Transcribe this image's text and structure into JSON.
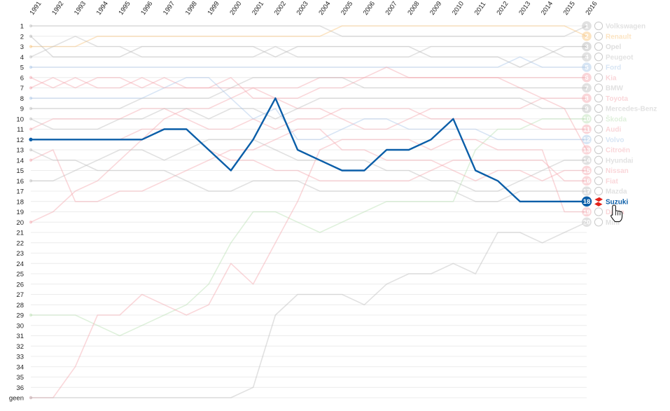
{
  "chart_data": {
    "type": "line",
    "x": [
      "1991",
      "1992",
      "1993",
      "1994",
      "1995",
      "1996",
      "1997",
      "1998",
      "1999",
      "2000",
      "2001",
      "2002",
      "2003",
      "2004",
      "2005",
      "2006",
      "2007",
      "2008",
      "2009",
      "2010",
      "2011",
      "2012",
      "2013",
      "2014",
      "2015",
      "2016"
    ],
    "y_ticks": [
      "1",
      "2",
      "3",
      "4",
      "5",
      "6",
      "7",
      "8",
      "9",
      "10",
      "11",
      "12",
      "13",
      "14",
      "15",
      "16",
      "17",
      "18",
      "19",
      "20",
      "21",
      "22",
      "23",
      "24",
      "25",
      "26",
      "27",
      "28",
      "29",
      "30",
      "31",
      "32",
      "33",
      "34",
      "35",
      "36",
      "geen"
    ],
    "y_reversed": true,
    "grid": true,
    "highlighted_series": "Suzuki",
    "series": [
      {
        "rank": "1",
        "name": "Volkswagen",
        "color": "#bdbdbd",
        "values": [
          1,
          1,
          1,
          1,
          1,
          1,
          1,
          1,
          1,
          1,
          1,
          1,
          1,
          1,
          2,
          2,
          2,
          2,
          2,
          2,
          2,
          2,
          2,
          2,
          2,
          1
        ]
      },
      {
        "rank": "2",
        "name": "Renault",
        "color": "#f9c47a",
        "values": [
          3,
          3,
          3,
          2,
          2,
          2,
          2,
          2,
          2,
          2,
          2,
          2,
          2,
          2,
          1,
          1,
          1,
          1,
          1,
          1,
          1,
          1,
          1,
          1,
          1,
          2
        ]
      },
      {
        "rank": "3",
        "name": "Opel",
        "color": "#b5b5b5",
        "values": [
          2,
          4,
          4,
          4,
          4,
          3,
          3,
          3,
          3,
          3,
          3,
          4,
          3,
          3,
          3,
          3,
          3,
          3,
          4,
          4,
          4,
          4,
          5,
          4,
          3,
          3
        ]
      },
      {
        "rank": "4",
        "name": "Peugeot",
        "color": "#bfbfbf",
        "values": [
          4,
          3,
          2,
          3,
          3,
          4,
          4,
          4,
          4,
          4,
          4,
          3,
          4,
          4,
          4,
          4,
          4,
          4,
          3,
          3,
          3,
          3,
          3,
          3,
          4,
          4
        ]
      },
      {
        "rank": "5",
        "name": "Ford",
        "color": "#a8c6e8",
        "values": [
          5,
          5,
          5,
          5,
          5,
          5,
          5,
          5,
          5,
          5,
          5,
          5,
          5,
          5,
          5,
          5,
          5,
          5,
          5,
          5,
          5,
          5,
          4,
          5,
          5,
          5
        ]
      },
      {
        "rank": "6",
        "name": "Kia",
        "color": "#f4a6ad",
        "values": [
          20,
          19,
          17,
          16,
          14,
          12,
          10,
          9,
          9,
          8,
          7,
          7,
          7,
          6,
          6,
          6,
          6,
          6,
          6,
          6,
          6,
          6,
          6,
          6,
          6,
          6
        ]
      },
      {
        "rank": "7",
        "name": "BMW",
        "color": "#bdbdbd",
        "values": [
          9,
          9,
          9,
          9,
          9,
          8,
          8,
          8,
          8,
          7,
          6,
          6,
          6,
          6,
          6,
          7,
          7,
          7,
          7,
          7,
          7,
          7,
          7,
          7,
          7,
          7
        ]
      },
      {
        "rank": "8",
        "name": "Toyota",
        "color": "#f4a6ad",
        "values": [
          7,
          6,
          7,
          6,
          6,
          7,
          6,
          7,
          7,
          6,
          8,
          8,
          9,
          9,
          10,
          11,
          11,
          10,
          9,
          9,
          9,
          9,
          9,
          8,
          8,
          8
        ]
      },
      {
        "rank": "9",
        "name": "Mercedes-Benz",
        "color": "#bdbdbd",
        "values": [
          10,
          11,
          11,
          11,
          10,
          10,
          9,
          9,
          10,
          9,
          9,
          10,
          9,
          8,
          8,
          8,
          8,
          8,
          8,
          8,
          8,
          8,
          8,
          9,
          9,
          9
        ]
      },
      {
        "rank": "10",
        "name": "Škoda",
        "color": "#b9dfb2",
        "values": [
          29,
          29,
          29,
          30,
          31,
          30,
          29,
          28,
          26,
          22,
          19,
          19,
          20,
          21,
          20,
          19,
          18,
          18,
          18,
          18,
          13,
          11,
          11,
          10,
          10,
          10
        ]
      },
      {
        "rank": "11",
        "name": "Audi",
        "color": "#f4a6ad",
        "values": [
          11,
          10,
          10,
          10,
          10,
          9,
          9,
          10,
          11,
          11,
          10,
          11,
          10,
          10,
          9,
          9,
          9,
          9,
          10,
          10,
          10,
          10,
          10,
          11,
          11,
          11
        ]
      },
      {
        "rank": "12",
        "name": "Volvo",
        "color": "#a8c6e8",
        "values": [
          8,
          8,
          8,
          8,
          8,
          8,
          7,
          6,
          6,
          8,
          10,
          9,
          12,
          12,
          11,
          10,
          10,
          11,
          11,
          11,
          11,
          12,
          12,
          12,
          12,
          12
        ]
      },
      {
        "rank": "13",
        "name": "Citroën",
        "color": "#f4a6ad",
        "values": [
          6,
          7,
          6,
          7,
          7,
          6,
          7,
          7,
          7,
          7,
          7,
          8,
          8,
          7,
          7,
          6,
          5,
          6,
          6,
          6,
          6,
          6,
          7,
          8,
          9,
          13
        ]
      },
      {
        "rank": "14",
        "name": "Hyundai",
        "color": "#bdbdbd",
        "values": [
          16,
          16,
          15,
          14,
          13,
          13,
          14,
          13,
          12,
          12,
          12,
          13,
          14,
          14,
          14,
          14,
          15,
          15,
          16,
          16,
          17,
          17,
          16,
          15,
          14,
          14
        ]
      },
      {
        "rank": "15",
        "name": "Nissan",
        "color": "#f4a6ad",
        "values": [
          14,
          13,
          18,
          18,
          17,
          17,
          16,
          15,
          14,
          13,
          13,
          12,
          11,
          11,
          13,
          13,
          14,
          14,
          14,
          15,
          16,
          15,
          15,
          16,
          15,
          15
        ]
      },
      {
        "rank": "16",
        "name": "Fiat",
        "color": "#f4a6ad",
        "values": [
          12,
          12,
          12,
          12,
          12,
          11,
          11,
          11,
          13,
          14,
          14,
          15,
          15,
          16,
          16,
          16,
          16,
          16,
          15,
          14,
          14,
          14,
          14,
          14,
          16,
          16
        ]
      },
      {
        "rank": "17",
        "name": "Mazda",
        "color": "#bdbdbd",
        "values": [
          13,
          14,
          14,
          15,
          15,
          15,
          15,
          16,
          17,
          17,
          16,
          16,
          16,
          17,
          17,
          17,
          17,
          17,
          17,
          17,
          18,
          18,
          17,
          17,
          17,
          17
        ]
      },
      {
        "rank": "18",
        "name": "Suzuki",
        "color": "#0b5ea8",
        "values": [
          12,
          12,
          12,
          12,
          12,
          12,
          11,
          11,
          13,
          15,
          12,
          8,
          13,
          14,
          15,
          15,
          13,
          13,
          12,
          10,
          15,
          16,
          18,
          18,
          18,
          18
        ]
      },
      {
        "rank": "19",
        "name": "Dacia",
        "color": "#f4a6ad",
        "values": [
          "geen",
          "geen",
          34,
          29,
          29,
          27,
          28,
          29,
          28,
          24,
          26,
          22,
          18,
          13,
          12,
          12,
          12,
          12,
          13,
          12,
          12,
          13,
          13,
          13,
          19,
          19
        ]
      },
      {
        "rank": "20",
        "name": "Mini",
        "color": "#bdbdbd",
        "values": [
          "geen",
          "geen",
          "geen",
          "geen",
          "geen",
          "geen",
          "geen",
          "geen",
          "geen",
          "geen",
          36,
          29,
          27,
          27,
          27,
          28,
          26,
          25,
          25,
          24,
          25,
          21,
          21,
          22,
          21,
          20
        ]
      }
    ]
  }
}
